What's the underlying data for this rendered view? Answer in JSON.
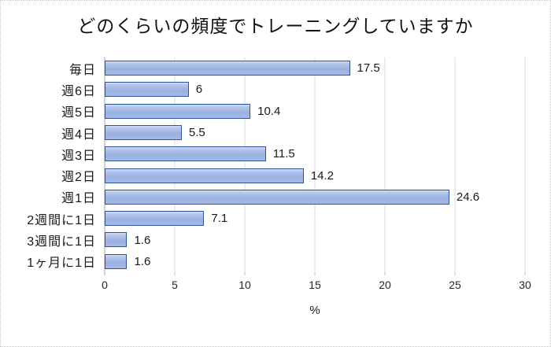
{
  "chart_data": {
    "type": "bar",
    "orientation": "horizontal",
    "title": "どのくらいの頻度でトレーニングしていますか",
    "categories": [
      "毎日",
      "週6日",
      "週5日",
      "週4日",
      "週3日",
      "週2日",
      "週1日",
      "2週間に1日",
      "3週間に1日",
      "1ヶ月に1日"
    ],
    "values": [
      17.5,
      6,
      10.4,
      5.5,
      11.5,
      14.2,
      24.6,
      7.1,
      1.6,
      1.6
    ],
    "value_labels": [
      "17.5",
      "6",
      "10.4",
      "5.5",
      "11.5",
      "14.2",
      "24.6",
      "7.1",
      "1.6",
      "1.6"
    ],
    "xlabel": "%",
    "xlim": [
      0,
      30
    ],
    "xticks": [
      0,
      5,
      10,
      15,
      20,
      25,
      30
    ],
    "grid": true,
    "legend": false,
    "colors": {
      "bar_fill": "#a3b9e5",
      "bar_fill_light": "#cdd9f3",
      "bar_border": "#2e5596",
      "gridline": "#d9d9d9",
      "axis_line": "#a6a6a6",
      "tick_mark": "#bfbfbf",
      "text": "#1a1a1a",
      "frame_border": "#c6c6c6",
      "background": "#ffffff"
    }
  }
}
